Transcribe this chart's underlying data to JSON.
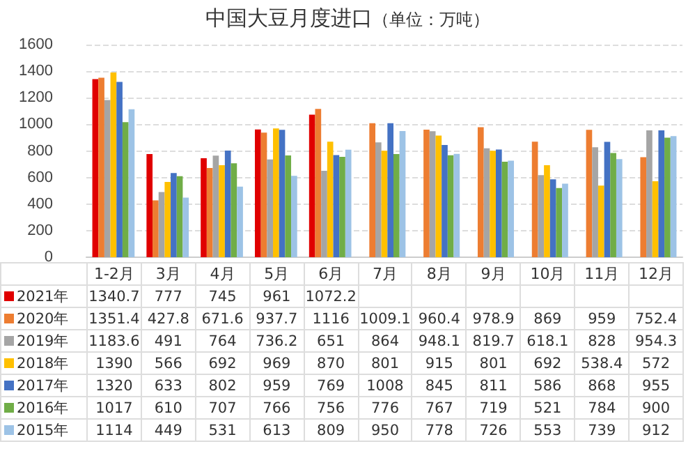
{
  "chart_data": {
    "type": "bar",
    "title": "中国大豆月度进口",
    "subtitle": "（单位：万吨）",
    "categories": [
      "1-2月",
      "3月",
      "4月",
      "5月",
      "6月",
      "7月",
      "8月",
      "9月",
      "10月",
      "11月",
      "12月"
    ],
    "series": [
      {
        "name": "2021年",
        "color": "#e00000",
        "values": [
          1340.7,
          777,
          745,
          961,
          1072.2,
          null,
          null,
          null,
          null,
          null,
          null
        ]
      },
      {
        "name": "2020年",
        "color": "#ed7d31",
        "values": [
          1351.4,
          427.8,
          671.6,
          937.7,
          1116,
          1009.1,
          960.4,
          978.9,
          869,
          959,
          752.4
        ]
      },
      {
        "name": "2019年",
        "color": "#a5a5a5",
        "values": [
          1183.6,
          491,
          764,
          736.2,
          651,
          864,
          948.1,
          819.7,
          618.1,
          828,
          954.3
        ]
      },
      {
        "name": "2018年",
        "color": "#ffc000",
        "values": [
          1390,
          566,
          692,
          969,
          870,
          801,
          915,
          801,
          692,
          538.4,
          572
        ]
      },
      {
        "name": "2017年",
        "color": "#4472c4",
        "values": [
          1320,
          633,
          802,
          959,
          769,
          1008,
          845,
          811,
          586,
          868,
          955
        ]
      },
      {
        "name": "2016年",
        "color": "#70ad47",
        "values": [
          1017,
          610,
          707,
          766,
          756,
          776,
          767,
          719,
          521,
          784,
          900
        ]
      },
      {
        "name": "2015年",
        "color": "#9dc3e6",
        "values": [
          1114,
          449,
          531,
          613,
          809,
          950,
          778,
          726,
          553,
          739,
          912
        ]
      }
    ],
    "ylim": [
      0,
      1600
    ],
    "yticks": [
      0,
      200,
      400,
      600,
      800,
      1000,
      1200,
      1400,
      1600
    ],
    "grid": "y",
    "legend": "bottom",
    "data_labels": true
  }
}
